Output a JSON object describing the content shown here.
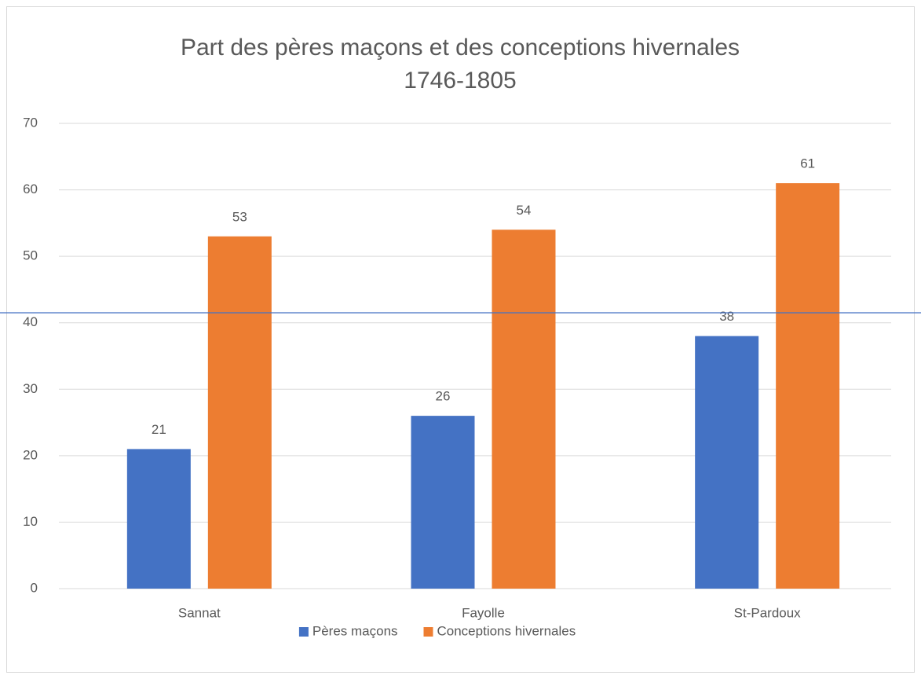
{
  "chart_data": {
    "type": "bar",
    "title": [
      "Part des pères maçons et des conceptions hivernales",
      "1746-1805"
    ],
    "categories": [
      "Sannat",
      "Fayolle",
      "St-Pardoux"
    ],
    "series": [
      {
        "name": "Pères maçons",
        "color": "#4472c4",
        "values": [
          21,
          26,
          38
        ]
      },
      {
        "name": "Conceptions hivernales",
        "color": "#ed7d31",
        "values": [
          53,
          54,
          61
        ]
      }
    ],
    "ylim": [
      0,
      70
    ],
    "yticks": [
      0,
      10,
      20,
      30,
      40,
      50,
      60,
      70
    ],
    "grid": true,
    "legend": "bottom",
    "hline": {
      "value": 41.5,
      "color": "#4472c4"
    }
  }
}
